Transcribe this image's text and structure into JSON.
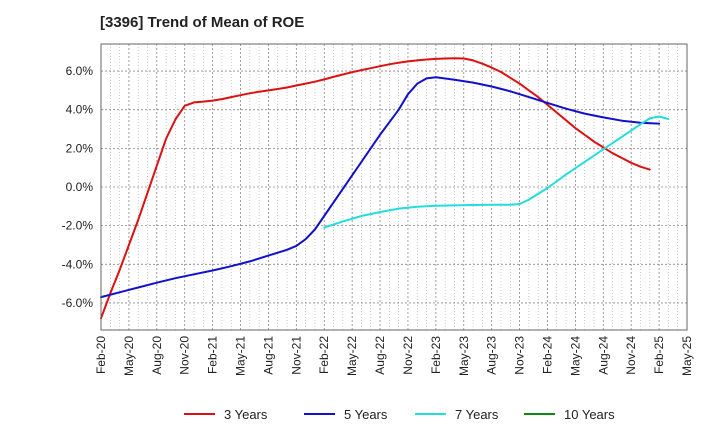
{
  "chart_data": {
    "type": "line",
    "title": "[3396]  Trend of Mean of ROE",
    "xlabel": "",
    "ylabel": "",
    "x_ticks": [
      "Feb-20",
      "May-20",
      "Aug-20",
      "Nov-20",
      "Feb-21",
      "May-21",
      "Aug-21",
      "Nov-21",
      "Feb-22",
      "May-22",
      "Aug-22",
      "Nov-22",
      "Feb-23",
      "May-23",
      "Aug-23",
      "Nov-23",
      "Feb-24",
      "May-24",
      "Aug-24",
      "Nov-24",
      "Feb-25",
      "May-25"
    ],
    "y_ticks": [
      "-6.0%",
      "-4.0%",
      "-2.0%",
      "0.0%",
      "2.0%",
      "4.0%",
      "6.0%"
    ],
    "y_tick_values": [
      -6,
      -4,
      -2,
      0,
      2,
      4,
      6
    ],
    "ylim": [
      -7.4,
      7.4
    ],
    "xlim": [
      "Feb-20",
      "May-25"
    ],
    "grid": true,
    "legend_position": "bottom",
    "series": [
      {
        "name": "3 Years",
        "color": "#dd1111",
        "points": [
          [
            "Feb-20",
            -6.8
          ],
          [
            "Mar-20",
            -5.5
          ],
          [
            "Apr-20",
            -4.3
          ],
          [
            "May-20",
            -3.0
          ],
          [
            "Jun-20",
            -1.7
          ],
          [
            "Jul-20",
            -0.3
          ],
          [
            "Aug-20",
            1.1
          ],
          [
            "Sep-20",
            2.5
          ],
          [
            "Oct-20",
            3.5
          ],
          [
            "Nov-20",
            4.2
          ],
          [
            "Dec-20",
            4.38
          ],
          [
            "Jan-21",
            4.42
          ],
          [
            "Feb-21",
            4.47
          ],
          [
            "Mar-21",
            4.55
          ],
          [
            "Apr-21",
            4.65
          ],
          [
            "May-21",
            4.75
          ],
          [
            "Jun-21",
            4.85
          ],
          [
            "Jul-21",
            4.93
          ],
          [
            "Aug-21",
            5.0
          ],
          [
            "Sep-21",
            5.07
          ],
          [
            "Oct-21",
            5.15
          ],
          [
            "Nov-21",
            5.25
          ],
          [
            "Dec-21",
            5.35
          ],
          [
            "Jan-22",
            5.45
          ],
          [
            "Feb-22",
            5.57
          ],
          [
            "Mar-22",
            5.7
          ],
          [
            "Apr-22",
            5.82
          ],
          [
            "May-22",
            5.94
          ],
          [
            "Jun-22",
            6.05
          ],
          [
            "Jul-22",
            6.15
          ],
          [
            "Aug-22",
            6.25
          ],
          [
            "Sep-22",
            6.35
          ],
          [
            "Oct-22",
            6.43
          ],
          [
            "Nov-22",
            6.5
          ],
          [
            "Dec-22",
            6.55
          ],
          [
            "Jan-23",
            6.6
          ],
          [
            "Feb-23",
            6.63
          ],
          [
            "Mar-23",
            6.65
          ],
          [
            "Apr-23",
            6.66
          ],
          [
            "May-23",
            6.65
          ],
          [
            "Jun-23",
            6.55
          ],
          [
            "Jul-23",
            6.38
          ],
          [
            "Aug-23",
            6.18
          ],
          [
            "Sep-23",
            5.95
          ],
          [
            "Oct-23",
            5.65
          ],
          [
            "Nov-23",
            5.35
          ],
          [
            "Dec-23",
            5.0
          ],
          [
            "Jan-24",
            4.65
          ],
          [
            "Feb-24",
            4.25
          ],
          [
            "Mar-24",
            3.85
          ],
          [
            "Apr-24",
            3.45
          ],
          [
            "May-24",
            3.05
          ],
          [
            "Jun-24",
            2.7
          ],
          [
            "Jul-24",
            2.35
          ],
          [
            "Aug-24",
            2.05
          ],
          [
            "Sep-24",
            1.75
          ],
          [
            "Oct-24",
            1.5
          ],
          [
            "Nov-24",
            1.25
          ],
          [
            "Dec-24",
            1.05
          ],
          [
            "Jan-25",
            0.9
          ]
        ]
      },
      {
        "name": "5 Years",
        "color": "#1111cc",
        "points": [
          [
            "Feb-20",
            -5.7
          ],
          [
            "Apr-20",
            -5.45
          ],
          [
            "Jun-20",
            -5.2
          ],
          [
            "Aug-20",
            -4.95
          ],
          [
            "Oct-20",
            -4.72
          ],
          [
            "Dec-20",
            -4.52
          ],
          [
            "Feb-21",
            -4.32
          ],
          [
            "Apr-21",
            -4.1
          ],
          [
            "Jun-21",
            -3.85
          ],
          [
            "Aug-21",
            -3.55
          ],
          [
            "Oct-21",
            -3.25
          ],
          [
            "Nov-21",
            -3.05
          ],
          [
            "Dec-21",
            -2.7
          ],
          [
            "Jan-22",
            -2.2
          ],
          [
            "Feb-22",
            -1.5
          ],
          [
            "Apr-22",
            -0.1
          ],
          [
            "Jun-22",
            1.3
          ],
          [
            "Aug-22",
            2.7
          ],
          [
            "Oct-22",
            4.0
          ],
          [
            "Nov-22",
            4.8
          ],
          [
            "Dec-22",
            5.35
          ],
          [
            "Jan-23",
            5.62
          ],
          [
            "Feb-23",
            5.68
          ],
          [
            "Apr-23",
            5.55
          ],
          [
            "Jun-23",
            5.4
          ],
          [
            "Aug-23",
            5.2
          ],
          [
            "Oct-23",
            4.95
          ],
          [
            "Dec-23",
            4.65
          ],
          [
            "Feb-24",
            4.35
          ],
          [
            "Apr-24",
            4.05
          ],
          [
            "Jun-24",
            3.8
          ],
          [
            "Aug-24",
            3.6
          ],
          [
            "Oct-24",
            3.43
          ],
          [
            "Dec-24",
            3.33
          ],
          [
            "Feb-25",
            3.28
          ]
        ]
      },
      {
        "name": "7 Years",
        "color": "#22dddd",
        "points": [
          [
            "Feb-22",
            -2.1
          ],
          [
            "Apr-22",
            -1.78
          ],
          [
            "Jun-22",
            -1.5
          ],
          [
            "Aug-22",
            -1.3
          ],
          [
            "Oct-22",
            -1.12
          ],
          [
            "Dec-22",
            -1.02
          ],
          [
            "Feb-23",
            -0.97
          ],
          [
            "Apr-23",
            -0.95
          ],
          [
            "Jun-23",
            -0.93
          ],
          [
            "Aug-23",
            -0.92
          ],
          [
            "Oct-23",
            -0.92
          ],
          [
            "Nov-23",
            -0.88
          ],
          [
            "Dec-23",
            -0.65
          ],
          [
            "Feb-24",
            -0.05
          ],
          [
            "Apr-24",
            0.65
          ],
          [
            "Jun-24",
            1.3
          ],
          [
            "Aug-24",
            1.95
          ],
          [
            "Oct-24",
            2.6
          ],
          [
            "Dec-24",
            3.25
          ],
          [
            "Jan-25",
            3.55
          ],
          [
            "Feb-25",
            3.65
          ],
          [
            "Mar-25",
            3.52
          ]
        ]
      },
      {
        "name": "10 Years",
        "color": "#118811",
        "points": []
      }
    ]
  }
}
